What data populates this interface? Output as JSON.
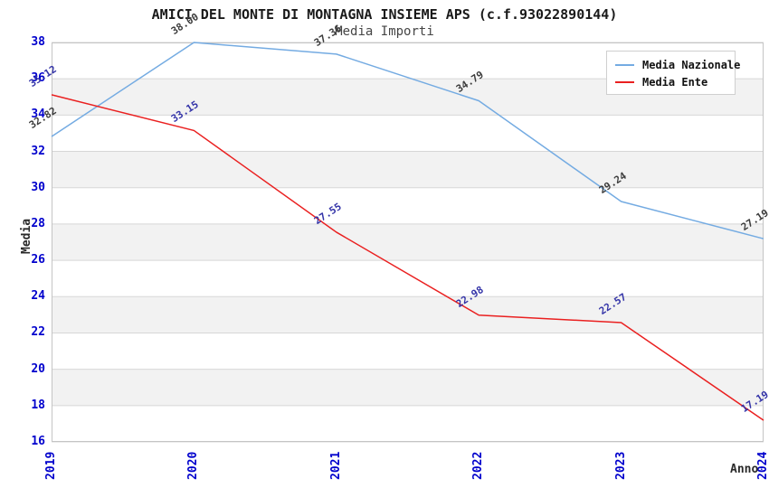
{
  "chart_data": {
    "type": "line",
    "title": "AMICI DEL MONTE DI MONTAGNA INSIEME APS (c.f.93022890144)",
    "subtitle": "Media Importi",
    "xlabel": "Anno",
    "ylabel": "Media",
    "x": [
      "2019",
      "2020",
      "2021",
      "2022",
      "2023",
      "2024"
    ],
    "ylim": [
      16,
      38
    ],
    "ytick_step": 2,
    "grid": true,
    "legend_position": "top-right",
    "band_color": "#f2f2f2",
    "gridline_color": "#d7d7d7",
    "plot_border_color": "#c4c4c4",
    "axis_tick_color": "#0000cc",
    "series": [
      {
        "name": "Media Nazionale",
        "color": "#74abe2",
        "label_color": "#3c3c3c",
        "values": [
          32.82,
          38.0,
          37.36,
          34.79,
          29.24,
          27.19
        ],
        "value_labels": [
          "32.82",
          "38.00",
          "37.36",
          "34.79",
          "29.24",
          "27.19"
        ]
      },
      {
        "name": "Media Ente",
        "color": "#ea2020",
        "label_color": "#3434a8",
        "values": [
          35.12,
          33.15,
          27.55,
          22.98,
          22.57,
          17.19
        ],
        "value_labels": [
          "35.12",
          "33.15",
          "27.55",
          "22.98",
          "22.57",
          "17.19"
        ]
      }
    ]
  }
}
